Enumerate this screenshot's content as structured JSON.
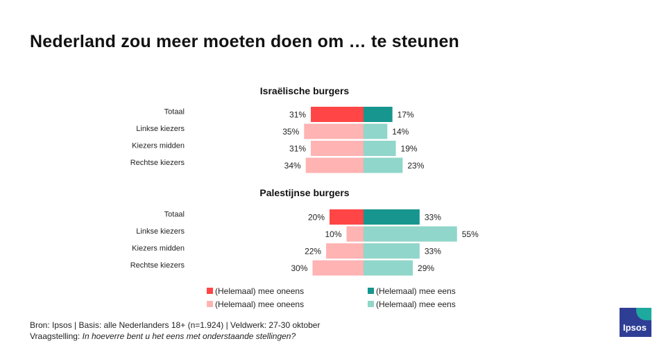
{
  "page": {
    "title": "Nederland zou meer moeten doen om … te steunen",
    "source": "Bron: Ipsos | Basis: alle Nederlanders  18+ (n=1.924) | Veldwerk: 27-30  oktober",
    "question_label": "Vraagstelling:",
    "question_text": "In hoeverre  bent u het eens met onderstaande  stellingen?",
    "logo_text": "Ipsos"
  },
  "colors": {
    "disagree_total": "#ff4545",
    "disagree_group": "#ffb3b3",
    "agree_total": "#16968f",
    "agree_group": "#90d6ca"
  },
  "chart_data": {
    "type": "bar",
    "orientation": "horizontal-diverging",
    "title": "Nederland zou meer moeten doen om … te steunen",
    "categories": [
      "Totaal",
      "Linkse kiezers",
      "Kiezers midden",
      "Rechtse kiezers"
    ],
    "panels": [
      {
        "title": "Israëlische burgers",
        "series": [
          {
            "name": "(Helemaal) mee oneens",
            "values": [
              31,
              35,
              31,
              34
            ]
          },
          {
            "name": "(Helemaal) mee eens",
            "values": [
              17,
              14,
              19,
              23
            ]
          }
        ]
      },
      {
        "title": "Palestijnse burgers",
        "series": [
          {
            "name": "(Helemaal) mee oneens",
            "values": [
              20,
              10,
              22,
              30
            ]
          },
          {
            "name": "(Helemaal) mee eens",
            "values": [
              33,
              55,
              33,
              29
            ]
          }
        ]
      }
    ],
    "unit": "%",
    "legend": [
      {
        "label": "(Helemaal) mee oneens",
        "color": "#ff4545"
      },
      {
        "label": "(Helemaal) mee eens",
        "color": "#16968f"
      },
      {
        "label": "(Helemaal) mee oneens",
        "color": "#ffb3b3"
      },
      {
        "label": "(Helemaal) mee eens",
        "color": "#90d6ca"
      }
    ],
    "legend_position": "bottom",
    "grid": false
  }
}
